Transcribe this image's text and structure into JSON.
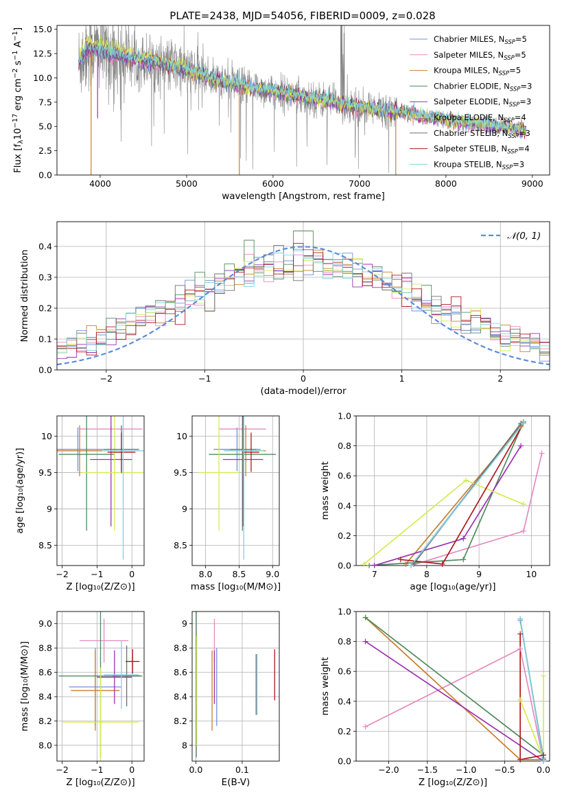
{
  "figure": {
    "title": "PLATE=2438, MJD=54056, FIBERID=0009, z=0.028"
  },
  "series": [
    {
      "key": "chabrier-miles",
      "label": "Chabrier MILES, N",
      "sub": "SSP",
      "tail": "=5",
      "color": "#6f8fdc"
    },
    {
      "key": "salpeter-miles",
      "label": "Salpeter MILES, N",
      "sub": "SSP",
      "tail": "=5",
      "color": "#e58ac0"
    },
    {
      "key": "kroupa-miles",
      "label": "Kroupa MILES, N",
      "sub": "SSP",
      "tail": "=5",
      "color": "#c87d2e"
    },
    {
      "key": "chabrier-elodie",
      "label": "Chabrier ELODIE, N",
      "sub": "SSP",
      "tail": "=3",
      "color": "#4f8a5b"
    },
    {
      "key": "salpeter-elodie",
      "label": "Salpeter ELODIE, N",
      "sub": "SSP",
      "tail": "=3",
      "color": "#9b2fb0"
    },
    {
      "key": "kroupa-elodie",
      "label": "Kroupa ELODIE, N",
      "sub": "SSP",
      "tail": "=4",
      "color": "#d6ea52"
    },
    {
      "key": "chabrier-stelib",
      "label": "Chabrier STELIB, N",
      "sub": "SSP",
      "tail": "=3",
      "color": "#6e6e6e"
    },
    {
      "key": "salpeter-stelib",
      "label": "Salpeter STELIB, N",
      "sub": "SSP",
      "tail": "=4",
      "color": "#b0161e"
    },
    {
      "key": "kroupa-stelib",
      "label": "Kroupa STELIB, N",
      "sub": "SSP",
      "tail": "=3",
      "color": "#7fd3dc"
    }
  ],
  "chart_data": [
    {
      "panel": "spectrum",
      "type": "line",
      "xlabel": "wavelength [Angstrom, rest frame]",
      "ylabel_parts": [
        "Flux [f",
        "λ",
        "10",
        "−17",
        " erg cm",
        "−2",
        " s",
        "−1",
        " A",
        "−1",
        "]"
      ],
      "xlim": [
        3500,
        9200
      ],
      "ylim": [
        0,
        15.4
      ],
      "xticks": [
        4000,
        5000,
        6000,
        7000,
        8000,
        9000
      ],
      "yticks": [
        0.0,
        2.5,
        5.0,
        7.5,
        10.0,
        12.5,
        15.0
      ],
      "ytick_labels": [
        "0.0",
        "2.5",
        "5.0",
        "7.5",
        "10.0",
        "12.5",
        "15.0"
      ],
      "observed_range": [
        3750,
        7440
      ],
      "model_range": [
        3750,
        8930
      ],
      "continuum": [
        [
          3750,
          11.5
        ],
        [
          3850,
          13.0
        ],
        [
          4000,
          12.8
        ],
        [
          4200,
          12.3
        ],
        [
          4500,
          11.8
        ],
        [
          4800,
          11.3
        ],
        [
          5000,
          10.8
        ],
        [
          5300,
          9.9
        ],
        [
          5600,
          9.3
        ],
        [
          6000,
          8.6
        ],
        [
          6500,
          7.8
        ],
        [
          7000,
          7.0
        ],
        [
          7400,
          6.5
        ],
        [
          8000,
          5.7
        ],
        [
          8500,
          5.1
        ],
        [
          8930,
          4.6
        ]
      ]
    },
    {
      "panel": "residuals",
      "type": "step-histogram",
      "xlabel": "(data-model)/error",
      "ylabel": "Normed distribution",
      "xlim": [
        -2.5,
        2.5
      ],
      "ylim": [
        0,
        0.48
      ],
      "xticks": [
        -2,
        -1,
        0,
        1,
        2
      ],
      "yticks": [
        0.0,
        0.1,
        0.2,
        0.3,
        0.4
      ],
      "ytick_labels": [
        "0.0",
        "0.1",
        "0.2",
        "0.3",
        "0.4"
      ],
      "bin_width": 0.1,
      "reference": {
        "label": "𝒩(0, 1)",
        "mu": 0,
        "sigma": 1,
        "color": "#5b8bd9"
      }
    },
    {
      "panel": "age-vs-Z",
      "type": "errorbar",
      "xlabel": "Z [log₁₀(Z/Z⊙)]",
      "ylabel": "age  [log₁₀(age/yr)]",
      "xlim": [
        -2.15,
        0.35
      ],
      "ylim": [
        8.22,
        10.28
      ],
      "xticks": [
        -2,
        -1,
        0
      ],
      "yticks": [
        8.5,
        9.0,
        9.5,
        10.0
      ],
      "points": [
        {
          "s": 0,
          "x": -1.55,
          "xerr": 0.75,
          "y": 9.82,
          "yerr": 0.3
        },
        {
          "s": 1,
          "x": -0.6,
          "xerr": 0.9,
          "y": 10.1,
          "yerr": 0.05
        },
        {
          "s": 2,
          "x": -1.5,
          "xerr": 0.65,
          "y": 9.8,
          "yerr": 0.35
        },
        {
          "s": 3,
          "x": -1.3,
          "xerr": 0.8,
          "y": 9.75,
          "yerr": 1.05
        },
        {
          "s": 4,
          "x": -0.6,
          "xerr": 0.6,
          "y": 9.68,
          "yerr": 0.92
        },
        {
          "s": 5,
          "x": -0.5,
          "xerr": 0.95,
          "y": 9.5,
          "yerr": 0.8
        },
        {
          "s": 6,
          "x": -0.3,
          "xerr": 0.5,
          "y": 9.82,
          "yerr": 0.33
        },
        {
          "s": 7,
          "x": -0.3,
          "xerr": 0.4,
          "y": 9.78,
          "yerr": 0.27
        },
        {
          "s": 8,
          "x": -0.25,
          "xerr": 0.6,
          "y": 9.8,
          "yerr": 1.5
        }
      ]
    },
    {
      "panel": "age-vs-mass",
      "type": "errorbar",
      "xlabel": "mass [log₁₀(M/M⊙)]",
      "xlim": [
        7.8,
        9.1
      ],
      "ylim": [
        8.22,
        10.28
      ],
      "xticks": [
        8.0,
        8.5,
        9.0
      ],
      "yticks": [
        8.5,
        9.0,
        9.5,
        10.0
      ],
      "xtick_labels": [
        "8.0",
        "8.5",
        "9.0"
      ],
      "points": [
        {
          "s": 0,
          "x": 8.47,
          "xerr": 0.35,
          "y": 9.82,
          "yerr": 0.3
        },
        {
          "s": 1,
          "x": 8.55,
          "xerr": 0.35,
          "y": 10.1,
          "yerr": 0.05
        },
        {
          "s": 2,
          "x": 8.6,
          "xerr": 0.3,
          "y": 9.8,
          "yerr": 0.35
        },
        {
          "s": 3,
          "x": 8.55,
          "xerr": 0.5,
          "y": 9.75,
          "yerr": 1.05
        },
        {
          "s": 4,
          "x": 8.56,
          "xerr": 0.3,
          "y": 9.68,
          "yerr": 0.92
        },
        {
          "s": 5,
          "x": 8.2,
          "xerr": 0.3,
          "y": 9.5,
          "yerr": 0.8
        },
        {
          "s": 6,
          "x": 8.56,
          "xerr": 0.2,
          "y": 9.82,
          "yerr": 0.33
        },
        {
          "s": 7,
          "x": 8.68,
          "xerr": 0.12,
          "y": 9.78,
          "yerr": 0.27
        },
        {
          "s": 8,
          "x": 8.57,
          "xerr": 0.3,
          "y": 9.8,
          "yerr": 1.5
        }
      ]
    },
    {
      "panel": "weight-vs-age",
      "type": "line",
      "xlabel": "age  [log₁₀(age/yr)]",
      "ylabel": "mass weight",
      "xlim": [
        6.65,
        10.35
      ],
      "ylim": [
        0,
        1
      ],
      "xticks": [
        7,
        8,
        9,
        10
      ],
      "yticks": [
        0.0,
        0.2,
        0.4,
        0.6,
        0.8,
        1.0
      ],
      "ytick_labels": [
        "0.0",
        "0.2",
        "0.4",
        "0.6",
        "0.8",
        "1.0"
      ],
      "lines": [
        {
          "s": 0,
          "x": [
            7.7,
            9.8
          ],
          "y": [
            0.0,
            0.94
          ]
        },
        {
          "s": 1,
          "x": [
            7.7,
            9.85,
            10.2
          ],
          "y": [
            0.0,
            0.23,
            0.75
          ]
        },
        {
          "s": 2,
          "x": [
            7.6,
            9.8
          ],
          "y": [
            0.01,
            0.93
          ]
        },
        {
          "s": 3,
          "x": [
            6.9,
            8.7,
            9.85
          ],
          "y": [
            0.0,
            0.04,
            0.96
          ]
        },
        {
          "s": 4,
          "x": [
            7.0,
            8.7,
            9.8
          ],
          "y": [
            0.0,
            0.18,
            0.8
          ]
        },
        {
          "s": 5,
          "x": [
            6.8,
            8.75,
            9.85
          ],
          "y": [
            0.01,
            0.57,
            0.41
          ]
        },
        {
          "s": 6,
          "x": [
            7.75,
            9.8
          ],
          "y": [
            0.01,
            0.95
          ]
        },
        {
          "s": 7,
          "x": [
            7.5,
            8.3,
            9.85
          ],
          "y": [
            0.04,
            0.01,
            0.95
          ]
        },
        {
          "s": 8,
          "x": [
            7.7,
            9.85
          ],
          "y": [
            0.0,
            0.95
          ]
        }
      ]
    },
    {
      "panel": "mass-vs-Z",
      "type": "errorbar",
      "xlabel": "Z [log₁₀(Z/Z⊙)]",
      "ylabel": "mass [log₁₀(M/M⊙)]",
      "xlim": [
        -2.15,
        0.35
      ],
      "ylim": [
        7.87,
        9.1
      ],
      "xticks": [
        -2,
        -1,
        0
      ],
      "yticks": [
        8.0,
        8.2,
        8.4,
        8.6,
        8.8,
        9.0
      ],
      "ytick_labels": [
        "8.0",
        "8.2",
        "8.4",
        "8.6",
        "8.8",
        "9.0"
      ],
      "points": [
        {
          "s": 0,
          "x": -1.05,
          "xerr": 0.75,
          "y": 8.48,
          "yerr": 0.32
        },
        {
          "s": 1,
          "x": -0.8,
          "xerr": 0.7,
          "y": 8.86,
          "yerr": 0.18
        },
        {
          "s": 2,
          "x": -1.05,
          "xerr": 0.7,
          "y": 8.45,
          "yerr": 0.33
        },
        {
          "s": 3,
          "x": -0.9,
          "xerr": 1.2,
          "y": 8.57,
          "yerr": 0.67
        },
        {
          "s": 4,
          "x": -0.5,
          "xerr": 0.5,
          "y": 8.56,
          "yerr": 0.22
        },
        {
          "s": 5,
          "x": -0.9,
          "xerr": 1.1,
          "y": 8.19,
          "yerr": 0.45
        },
        {
          "s": 6,
          "x": -0.15,
          "xerr": 0.4,
          "y": 8.57,
          "yerr": 0.25
        },
        {
          "s": 7,
          "x": 0.02,
          "xerr": 0.2,
          "y": 8.69,
          "yerr": 0.1
        },
        {
          "s": 8,
          "x": -0.3,
          "xerr": 0.5,
          "y": 8.58,
          "yerr": 0.28
        }
      ]
    },
    {
      "panel": "mass-vs-EBV",
      "type": "errorbar",
      "xlabel": "E(B-V)",
      "xlim": [
        -0.008,
        0.18
      ],
      "ylim": [
        7.87,
        9.1
      ],
      "xticks": [
        0.0,
        0.1
      ],
      "yticks": [
        8.0,
        8.2,
        8.4,
        8.6,
        8.8,
        9.0
      ],
      "xtick_labels": [
        "0.0",
        "0.1"
      ],
      "points": [
        {
          "s": 0,
          "x": 0.045,
          "y": 8.48,
          "yerr": 0.32
        },
        {
          "s": 1,
          "x": 0.04,
          "y": 8.86,
          "yerr": 0.18
        },
        {
          "s": 2,
          "x": 0.035,
          "y": 8.45,
          "yerr": 0.33
        },
        {
          "s": 3,
          "x": 0.001,
          "y": 8.57,
          "yerr": 0.67
        },
        {
          "s": 4,
          "x": 0.04,
          "y": 8.56,
          "yerr": 0.22
        },
        {
          "s": 5,
          "x": 0.002,
          "y": 8.45,
          "yerr": 0.45
        },
        {
          "s": 6,
          "x": 0.13,
          "y": 8.5,
          "yerr": 0.25
        },
        {
          "s": 7,
          "x": 0.17,
          "y": 8.58,
          "yerr": 0.21
        },
        {
          "s": 8,
          "x": 0.132,
          "y": 8.5,
          "yerr": 0.25
        }
      ]
    },
    {
      "panel": "weight-vs-Z",
      "type": "line",
      "xlabel": "Z [log₁₀(Z/Z⊙)]",
      "ylabel": "mass weight",
      "xlim": [
        -2.42,
        0.08
      ],
      "ylim": [
        0,
        1
      ],
      "xticks": [
        -2.0,
        -1.5,
        -1.0,
        -0.5,
        0.0
      ],
      "xtick_labels": [
        "−2.0",
        "−1.5",
        "−1.0",
        "−0.5",
        "0.0"
      ],
      "yticks": [
        0.0,
        0.2,
        0.4,
        0.6,
        0.8,
        1.0
      ],
      "ytick_labels": [
        "0.0",
        "0.2",
        "0.4",
        "0.6",
        "0.8",
        "1.0"
      ],
      "lines": [
        {
          "s": 0,
          "x": [
            -0.3,
            0.0
          ],
          "y": [
            0.94,
            0.02
          ]
        },
        {
          "s": 1,
          "x": [
            -2.3,
            -0.3,
            0.0
          ],
          "y": [
            0.23,
            0.75,
            0.0
          ]
        },
        {
          "s": 2,
          "x": [
            -2.3,
            -0.3,
            0.0
          ],
          "y": [
            0.96,
            0.01,
            0.01
          ]
        },
        {
          "s": 3,
          "x": [
            -2.3,
            0.0
          ],
          "y": [
            0.96,
            0.04
          ]
        },
        {
          "s": 4,
          "x": [
            -2.3,
            0.0
          ],
          "y": [
            0.8,
            0.0
          ]
        },
        {
          "s": 5,
          "x": [
            -0.3,
            0.0,
            0.0
          ],
          "y": [
            0.41,
            0.01,
            0.57
          ]
        },
        {
          "s": 6,
          "x": [
            -0.3,
            0.0
          ],
          "y": [
            0.95,
            0.01
          ]
        },
        {
          "s": 7,
          "x": [
            -0.3,
            -0.3,
            0.0
          ],
          "y": [
            0.85,
            0.01,
            0.04
          ]
        },
        {
          "s": 8,
          "x": [
            -0.3,
            0.0
          ],
          "y": [
            0.95,
            0.0
          ]
        }
      ]
    }
  ]
}
